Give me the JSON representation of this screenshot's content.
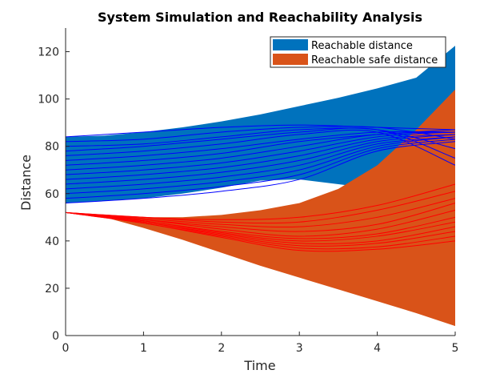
{
  "chart_data": {
    "type": "area",
    "title": "System Simulation and Reachability Analysis",
    "xlabel": "Time",
    "ylabel": "Distance",
    "xlim": [
      0,
      5
    ],
    "ylim": [
      0,
      130
    ],
    "xticks": [
      0,
      1,
      2,
      3,
      4,
      5
    ],
    "yticks": [
      0,
      20,
      40,
      60,
      80,
      100,
      120
    ],
    "grid": false,
    "legend_position": "top-right",
    "legend": [
      {
        "label": "Reachable distance",
        "color": "#0072BD"
      },
      {
        "label": "Reachable safe distance",
        "color": "#D95319"
      }
    ],
    "bands": [
      {
        "name": "Reachable distance",
        "color": "#0072BD",
        "x": [
          0,
          0.5,
          1,
          1.5,
          2,
          2.5,
          3,
          3.5,
          4,
          4.5,
          5
        ],
        "upper": [
          84,
          84.5,
          86,
          88,
          90.5,
          93.5,
          97,
          100.5,
          104.5,
          109,
          122.5
        ],
        "lower": [
          56,
          57,
          58,
          60,
          62.5,
          65.5,
          66,
          64,
          62,
          62,
          72
        ]
      },
      {
        "name": "Reachable safe distance",
        "color": "#D95319",
        "x": [
          0,
          0.5,
          1,
          1.5,
          2,
          2.5,
          3,
          3.5,
          4,
          4.5,
          5
        ],
        "upper": [
          52,
          51,
          50,
          50,
          51,
          53,
          56,
          62,
          72,
          87,
          104
        ],
        "lower": [
          52,
          50,
          45.5,
          40.5,
          35,
          29.5,
          24.5,
          19.5,
          14.5,
          9.5,
          4
        ]
      }
    ],
    "trajectories": [
      {
        "name": "Distance trajectories",
        "color": "#0000FF",
        "x": [
          0,
          1,
          2,
          3,
          4,
          5
        ],
        "lines": [
          [
            84,
            86,
            88,
            89,
            88,
            87
          ],
          [
            82,
            83,
            86,
            88,
            88,
            83
          ],
          [
            80,
            81,
            84,
            87,
            87,
            79
          ],
          [
            78,
            80,
            83,
            86,
            87,
            75
          ],
          [
            76,
            78,
            81,
            85,
            86,
            72
          ],
          [
            74,
            76,
            79,
            83,
            86,
            86
          ],
          [
            72,
            74,
            77,
            82,
            85,
            87
          ],
          [
            70,
            72,
            75,
            80,
            85,
            86
          ],
          [
            68,
            70,
            73,
            78,
            84,
            86
          ],
          [
            66,
            68,
            71,
            76,
            83,
            85
          ],
          [
            64,
            66,
            69,
            74,
            82,
            85
          ],
          [
            62,
            64,
            67,
            72,
            81,
            84
          ],
          [
            60,
            62,
            65,
            70,
            80,
            84
          ],
          [
            58,
            60,
            63,
            68,
            79,
            83
          ],
          [
            56,
            58,
            61,
            66,
            78,
            82
          ]
        ]
      },
      {
        "name": "Safe distance trajectories",
        "color": "#FF0000",
        "x": [
          0,
          1,
          2,
          3,
          4,
          5
        ],
        "lines": [
          [
            52,
            50,
            49,
            50,
            55,
            64
          ],
          [
            52,
            50,
            48,
            48,
            53,
            61
          ],
          [
            52,
            49.5,
            47,
            46,
            50,
            58
          ],
          [
            52,
            49,
            46,
            44,
            47,
            56
          ],
          [
            52,
            49,
            45,
            42,
            45,
            53
          ],
          [
            52,
            48.5,
            44,
            41,
            43,
            50
          ],
          [
            52,
            48.5,
            43.5,
            40,
            42,
            48
          ],
          [
            52,
            48,
            43,
            39,
            40,
            46
          ],
          [
            52,
            48,
            42.5,
            38,
            39,
            44
          ],
          [
            52,
            47.5,
            42,
            37,
            37.5,
            42
          ],
          [
            52,
            47.5,
            41.5,
            36,
            36.5,
            40
          ]
        ]
      }
    ]
  }
}
